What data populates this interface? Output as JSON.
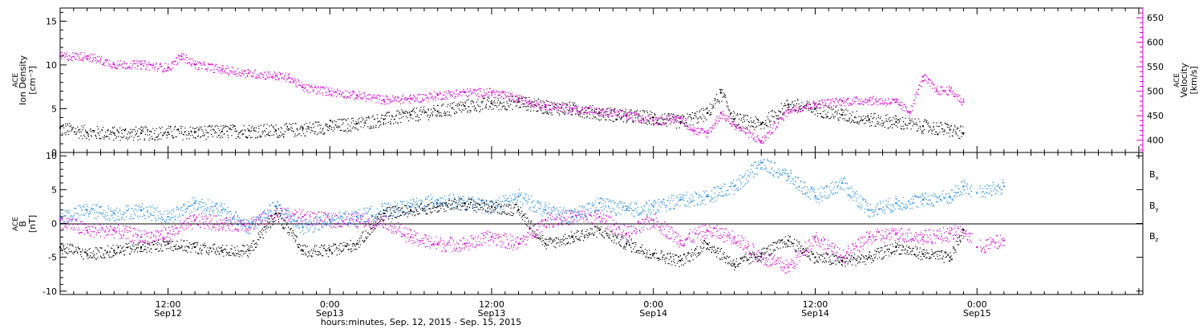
{
  "colors": {
    "black": "#000000",
    "magenta": "#d400d4",
    "blue": "#1f8ae6",
    "background": "#ffffff"
  },
  "xlabel": "hours:minutes, Sep. 12, 2015 - Sep. 15, 2015",
  "x_ticks": [
    {
      "time": "12:00",
      "date": "Sep12",
      "hour": 12
    },
    {
      "time": "0:00",
      "date": "Sep13",
      "hour": 24
    },
    {
      "time": "12:00",
      "date": "Sep13",
      "hour": 36
    },
    {
      "time": "0:00",
      "date": "Sep14",
      "hour": 48
    },
    {
      "time": "12:00",
      "date": "Sep14",
      "hour": 60
    },
    {
      "time": "0:00",
      "date": "Sep15",
      "hour": 72
    }
  ],
  "x_range_hours": [
    4.0,
    84.3
  ],
  "chart_data": [
    {
      "type": "scatter",
      "panel": "plasma",
      "left_axis": {
        "label": [
          "ACE",
          "Ion Density",
          "[cm⁻³]"
        ],
        "ylim": [
          0,
          16.5
        ],
        "ticks": [
          "0",
          "5",
          "10",
          "15"
        ]
      },
      "right_axis": {
        "label": [
          "ACE",
          "Velocity",
          "[km/s]"
        ],
        "ylim": [
          375,
          670
        ],
        "ticks": [
          "400",
          "450",
          "500",
          "550",
          "600",
          "650"
        ]
      },
      "series": [
        {
          "axis": "left",
          "color": "black",
          "x": [
            4,
            6,
            8,
            10,
            12,
            14,
            16,
            18,
            20,
            22,
            24,
            26,
            28,
            30,
            32,
            34,
            36,
            38,
            40,
            42,
            44,
            46,
            48,
            50,
            52,
            53,
            54,
            56,
            58,
            60,
            62,
            64,
            66,
            68,
            70,
            71
          ],
          "y": [
            2.8,
            2.3,
            2.2,
            2.2,
            2.3,
            2.3,
            2.4,
            2.5,
            2.5,
            2.7,
            3.0,
            3.3,
            3.8,
            4.3,
            4.7,
            5.3,
            5.6,
            5.8,
            5.2,
            5.0,
            4.5,
            4.2,
            4.0,
            3.5,
            4.5,
            6.8,
            3.8,
            3.2,
            5.5,
            5.0,
            4.3,
            3.8,
            3.5,
            3.0,
            2.6,
            2.2
          ]
        },
        {
          "axis": "right",
          "color": "magenta",
          "x": [
            4,
            6,
            8,
            10,
            12,
            13,
            14,
            16,
            18,
            20,
            21,
            22,
            24,
            26,
            28,
            30,
            32,
            34,
            36,
            38,
            40,
            42,
            44,
            46,
            48,
            50,
            51,
            52,
            53,
            54,
            56,
            58,
            60,
            62,
            64,
            66,
            67,
            68,
            69,
            70,
            71
          ],
          "y": [
            572,
            572,
            555,
            555,
            548,
            572,
            555,
            545,
            537,
            532,
            528,
            508,
            500,
            492,
            483,
            485,
            492,
            498,
            498,
            484,
            472,
            465,
            458,
            452,
            440,
            445,
            420,
            415,
            455,
            432,
            398,
            462,
            474,
            480,
            482,
            478,
            458,
            530,
            502,
            502,
            478
          ]
        }
      ]
    },
    {
      "type": "scatter",
      "panel": "magnetic",
      "left_axis": {
        "label": [
          "ACE",
          "B",
          "[nT]"
        ],
        "ylim": [
          -10.5,
          10.5
        ],
        "ticks": [
          "-10",
          "-5",
          "0",
          "5",
          "10"
        ]
      },
      "legend": [
        {
          "base": "B",
          "sub": "x",
          "color": "black"
        },
        {
          "base": "B",
          "sub": "y",
          "color": "blue"
        },
        {
          "base": "B",
          "sub": "z",
          "color": "magenta"
        }
      ],
      "legend_placement": "right",
      "series": [
        {
          "name": "Bx",
          "color": "black",
          "x": [
            4,
            6,
            8,
            10,
            12,
            14,
            16,
            18,
            20,
            22,
            24,
            26,
            28,
            30,
            32,
            34,
            36,
            38,
            40,
            42,
            44,
            46,
            48,
            50,
            52,
            54,
            56,
            58,
            60,
            62,
            64,
            66,
            68,
            70,
            71
          ],
          "y": [
            -3.5,
            -4.5,
            -4.0,
            -3.5,
            -3.0,
            -3.5,
            -4.0,
            -4.0,
            1.5,
            -4.0,
            -4.0,
            -3.0,
            1.5,
            2.0,
            2.5,
            3.0,
            2.5,
            2.0,
            -3.0,
            -2.0,
            -1.0,
            -3.0,
            -4.5,
            -5.5,
            -3.0,
            -6.0,
            -4.5,
            -2.5,
            -5.0,
            -5.5,
            -5.0,
            -3.5,
            -4.5,
            -5.0,
            -1.0
          ]
        },
        {
          "name": "By",
          "color": "blue",
          "x": [
            4,
            6,
            8,
            10,
            12,
            14,
            16,
            18,
            20,
            22,
            24,
            26,
            28,
            30,
            32,
            34,
            36,
            38,
            40,
            42,
            44,
            46,
            48,
            50,
            52,
            54,
            56,
            58,
            60,
            62,
            64,
            66,
            68,
            70,
            71,
            72,
            74
          ],
          "y": [
            1.0,
            2.0,
            1.5,
            2.0,
            1.0,
            3.0,
            2.0,
            -0.5,
            2.5,
            -0.5,
            0.5,
            1.0,
            2.0,
            2.5,
            3.5,
            3.0,
            2.5,
            4.0,
            2.0,
            1.0,
            3.0,
            2.0,
            2.5,
            3.5,
            4.0,
            5.5,
            9.0,
            7.0,
            4.0,
            6.0,
            2.0,
            3.0,
            3.5,
            4.0,
            5.5,
            4.5,
            5.5
          ]
        },
        {
          "name": "Bz",
          "color": "magenta",
          "x": [
            4,
            6,
            8,
            10,
            12,
            14,
            16,
            18,
            20,
            22,
            24,
            26,
            28,
            30,
            32,
            34,
            36,
            38,
            40,
            42,
            44,
            46,
            48,
            50,
            52,
            54,
            56,
            58,
            60,
            62,
            64,
            66,
            68,
            70,
            71,
            72,
            74
          ],
          "y": [
            0.5,
            -1.0,
            -1.0,
            -2.0,
            -1.5,
            0.5,
            0.0,
            0.0,
            1.5,
            1.0,
            0.5,
            0.5,
            0.5,
            -2.0,
            -3.0,
            -3.0,
            -2.0,
            -3.0,
            0.5,
            1.0,
            1.0,
            -1.5,
            0.5,
            -2.5,
            -1.0,
            -2.0,
            -5.0,
            -6.5,
            -2.0,
            -5.0,
            -2.0,
            -1.5,
            -2.0,
            -1.5,
            -1.0,
            -3.5,
            -2.5
          ]
        }
      ]
    }
  ]
}
